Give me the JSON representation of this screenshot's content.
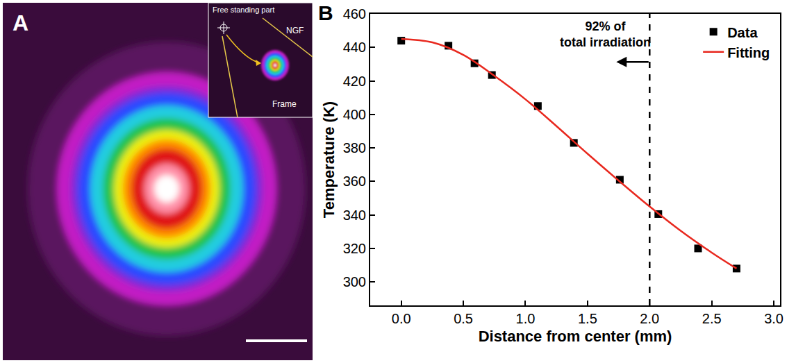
{
  "panel_a": {
    "letter": "A",
    "inset_labels": {
      "pointer": "Free standing part",
      "film": "NGF",
      "support": "Frame"
    }
  },
  "chart_data": {
    "panel_letter": "B",
    "type": "scatter",
    "x_title": "Distance from center (mm)",
    "y_title": "Temperature (K)",
    "series": [
      {
        "name": "Data",
        "type": "scatter",
        "marker": "square",
        "color": "#000000",
        "x": [
          0,
          0.38,
          0.59,
          0.73,
          1.1,
          1.39,
          1.76,
          2.07,
          2.39,
          2.7
        ],
        "values": [
          444,
          441,
          430.5,
          423.5,
          405,
          383,
          361,
          340.5,
          320,
          308
        ]
      },
      {
        "name": "Fitting",
        "type": "line",
        "line_style": "solid",
        "color": "#e8281e",
        "x": [
          0,
          0.25,
          0.5,
          0.75,
          1.0,
          1.25,
          1.5,
          1.75,
          2.0,
          2.25,
          2.5,
          2.7
        ],
        "values": [
          445,
          443,
          435.5,
          423,
          409,
          393,
          376.5,
          360.5,
          345,
          330.5,
          317.5,
          308
        ]
      }
    ],
    "xlim": [
      -0.25,
      3.05
    ],
    "xticks": [
      {
        "value": 0,
        "label": "0.0"
      },
      {
        "value": 0.5,
        "label": "0.5"
      },
      {
        "value": 1,
        "label": "1.0"
      },
      {
        "value": 1.5,
        "label": "1.5"
      },
      {
        "value": 2,
        "label": "2.0"
      },
      {
        "value": 2.5,
        "label": "2.5"
      },
      {
        "value": 3,
        "label": "3.0"
      }
    ],
    "ylim": [
      286,
      460
    ],
    "yticks": [
      300,
      320,
      340,
      360,
      380,
      400,
      420,
      440,
      460
    ],
    "grid": false,
    "legend": "top right",
    "annotations": [
      {
        "lines": [
          "92% of",
          "total irradiation"
        ],
        "x": 2.0,
        "line_style": "dash"
      }
    ]
  }
}
